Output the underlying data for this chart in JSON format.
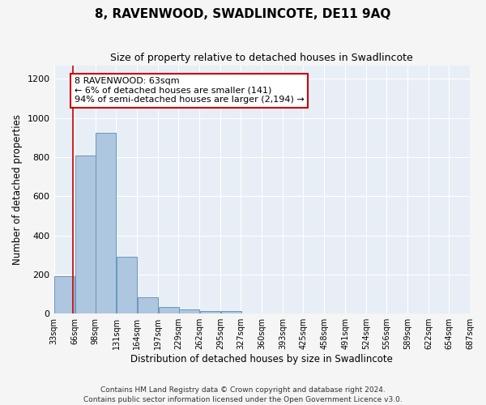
{
  "title": "8, RAVENWOOD, SWADLINCOTE, DE11 9AQ",
  "subtitle": "Size of property relative to detached houses in Swadlincote",
  "xlabel": "Distribution of detached houses by size in Swadlincote",
  "ylabel": "Number of detached properties",
  "bar_values": [
    190,
    810,
    925,
    290,
    85,
    35,
    20,
    15,
    12,
    0,
    0,
    0,
    0,
    0,
    0,
    0,
    0,
    0,
    0,
    0
  ],
  "bin_edges": [
    33,
    66,
    98,
    131,
    164,
    197,
    229,
    262,
    295,
    327,
    360,
    393,
    425,
    458,
    491,
    524,
    556,
    589,
    622,
    654,
    687
  ],
  "tick_labels": [
    "33sqm",
    "66sqm",
    "98sqm",
    "131sqm",
    "164sqm",
    "197sqm",
    "229sqm",
    "262sqm",
    "295sqm",
    "327sqm",
    "360sqm",
    "393sqm",
    "425sqm",
    "458sqm",
    "491sqm",
    "524sqm",
    "556sqm",
    "589sqm",
    "622sqm",
    "654sqm",
    "687sqm"
  ],
  "bar_color": "#aec6df",
  "bar_edge_color": "#6699bb",
  "property_line_x": 63,
  "property_line_color": "#cc0000",
  "annotation_text": "8 RAVENWOOD: 63sqm\n← 6% of detached houses are smaller (141)\n94% of semi-detached houses are larger (2,194) →",
  "annotation_box_color": "#ffffff",
  "annotation_box_edge_color": "#cc0000",
  "ylim": [
    0,
    1270
  ],
  "yticks": [
    0,
    200,
    400,
    600,
    800,
    1000,
    1200
  ],
  "bg_color": "#e8eef5",
  "grid_color": "#ffffff",
  "footer_text": "Contains HM Land Registry data © Crown copyright and database right 2024.\nContains public sector information licensed under the Open Government Licence v3.0.",
  "title_fontsize": 11,
  "subtitle_fontsize": 9,
  "xlabel_fontsize": 8.5,
  "ylabel_fontsize": 8.5,
  "tick_fontsize": 7,
  "annotation_fontsize": 8,
  "footer_fontsize": 6.5
}
